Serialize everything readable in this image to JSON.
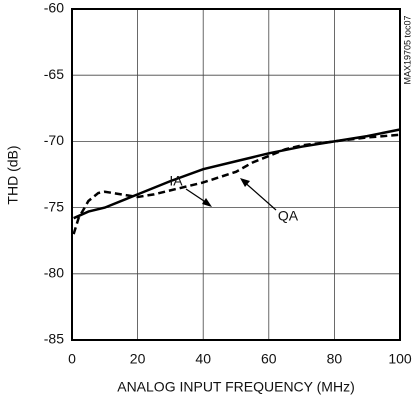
{
  "chart_data": {
    "type": "line",
    "xlabel": "ANALOG INPUT FREQUENCY (MHz)",
    "ylabel": "THD (dB)",
    "side_note": "MAX19705 toc07",
    "xlim": [
      0,
      100
    ],
    "xticks": [
      0,
      20,
      40,
      60,
      80,
      100
    ],
    "ylim": [
      -85,
      -60
    ],
    "yticks": [
      -85,
      -80,
      -75,
      -70,
      -65,
      -60
    ],
    "grid": true,
    "series": [
      {
        "name": "IA",
        "color": "#000000",
        "dash": false,
        "x": [
          0.5,
          5,
          10,
          20,
          30,
          40,
          50,
          60,
          70,
          80,
          90,
          100
        ],
        "values": [
          -75.8,
          -75.3,
          -75.0,
          -74.0,
          -73.0,
          -72.1,
          -71.5,
          -70.9,
          -70.4,
          -70.0,
          -69.6,
          -69.1
        ]
      },
      {
        "name": "QA",
        "color": "#000000",
        "dash": true,
        "x": [
          0.5,
          2,
          5,
          8,
          10,
          15,
          20,
          25,
          30,
          40,
          50,
          55,
          60,
          65,
          70,
          80,
          90,
          100
        ],
        "values": [
          -77,
          -75.8,
          -74.5,
          -73.9,
          -73.8,
          -74.0,
          -74.2,
          -74.0,
          -73.7,
          -73.1,
          -72.3,
          -71.6,
          -71.1,
          -70.6,
          -70.3,
          -70.0,
          -69.7,
          -69.5
        ]
      }
    ]
  }
}
